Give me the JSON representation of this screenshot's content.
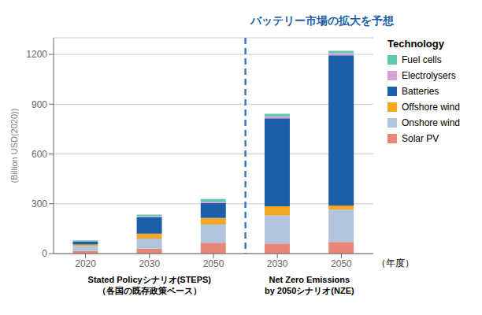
{
  "chart_data": {
    "type": "bar",
    "stacked": true,
    "title": "バッテリー市場の拡大を予想",
    "ylabel": "(Billion USD(2020))",
    "xlabel": "（年度）",
    "group_labels": [
      "Stated Policyシナリオ(STEPS)\n（各国の既存政策ベース）",
      "Net Zero Emissions\nby 2050シナリオ(NZE)"
    ],
    "legend_title": "Technology",
    "legend": "upper right",
    "grid": true,
    "categories": [
      "2020",
      "2030",
      "2050",
      "2030",
      "2050"
    ],
    "series": [
      {
        "name": "Solar PV",
        "color": "#e8867a",
        "values": [
          15,
          30,
          65,
          60,
          70
        ]
      },
      {
        "name": "Onshore wind",
        "color": "#b0c4de",
        "values": [
          30,
          60,
          110,
          170,
          195
        ]
      },
      {
        "name": "Offshore wind",
        "color": "#f5a623",
        "values": [
          10,
          30,
          40,
          55,
          25
        ]
      },
      {
        "name": "Batteries",
        "color": "#1a5fa8",
        "values": [
          18,
          100,
          90,
          530,
          905
        ]
      },
      {
        "name": "Electrolysers",
        "color": "#d8a0d0",
        "values": [
          2,
          5,
          8,
          12,
          12
        ]
      },
      {
        "name": "Fuel cells",
        "color": "#5ec8b0",
        "values": [
          5,
          10,
          15,
          15,
          15
        ]
      }
    ],
    "ylim": [
      0,
      1300
    ],
    "yticks": [
      0,
      300,
      600,
      900,
      1200
    ]
  }
}
